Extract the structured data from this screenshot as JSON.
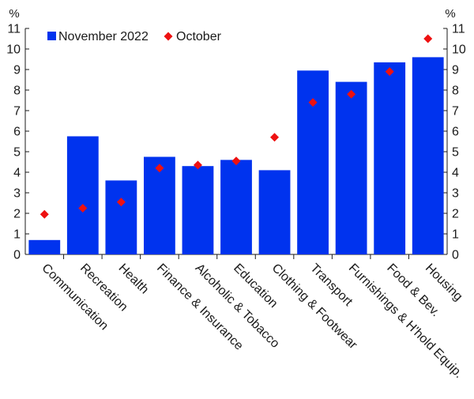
{
  "chart_data": {
    "type": "bar",
    "unit_left": "%",
    "unit_right": "%",
    "ylim": [
      0,
      11
    ],
    "yticks": [
      0,
      1,
      2,
      3,
      4,
      5,
      6,
      7,
      8,
      9,
      10,
      11
    ],
    "grid": false,
    "legend_position": "top-left",
    "categories": [
      "Communication",
      "Recreation",
      "Health",
      "Finance & Insurance",
      "Alcoholic & Tobacco",
      "Education",
      "Clothing & Footwear",
      "Transport",
      "Furnishings & H'hold Equip.",
      "Food & Bev.",
      "Housing"
    ],
    "series": [
      {
        "name": "November 2022",
        "kind": "bar",
        "color": "#0033ee",
        "values": [
          0.7,
          5.75,
          3.6,
          4.75,
          4.3,
          4.6,
          4.1,
          8.95,
          8.4,
          9.35,
          9.6
        ]
      },
      {
        "name": "October",
        "kind": "marker",
        "color": "#ee1111",
        "values": [
          1.95,
          2.25,
          2.55,
          4.2,
          4.35,
          4.55,
          5.7,
          7.4,
          7.8,
          8.9,
          10.5
        ]
      }
    ]
  }
}
